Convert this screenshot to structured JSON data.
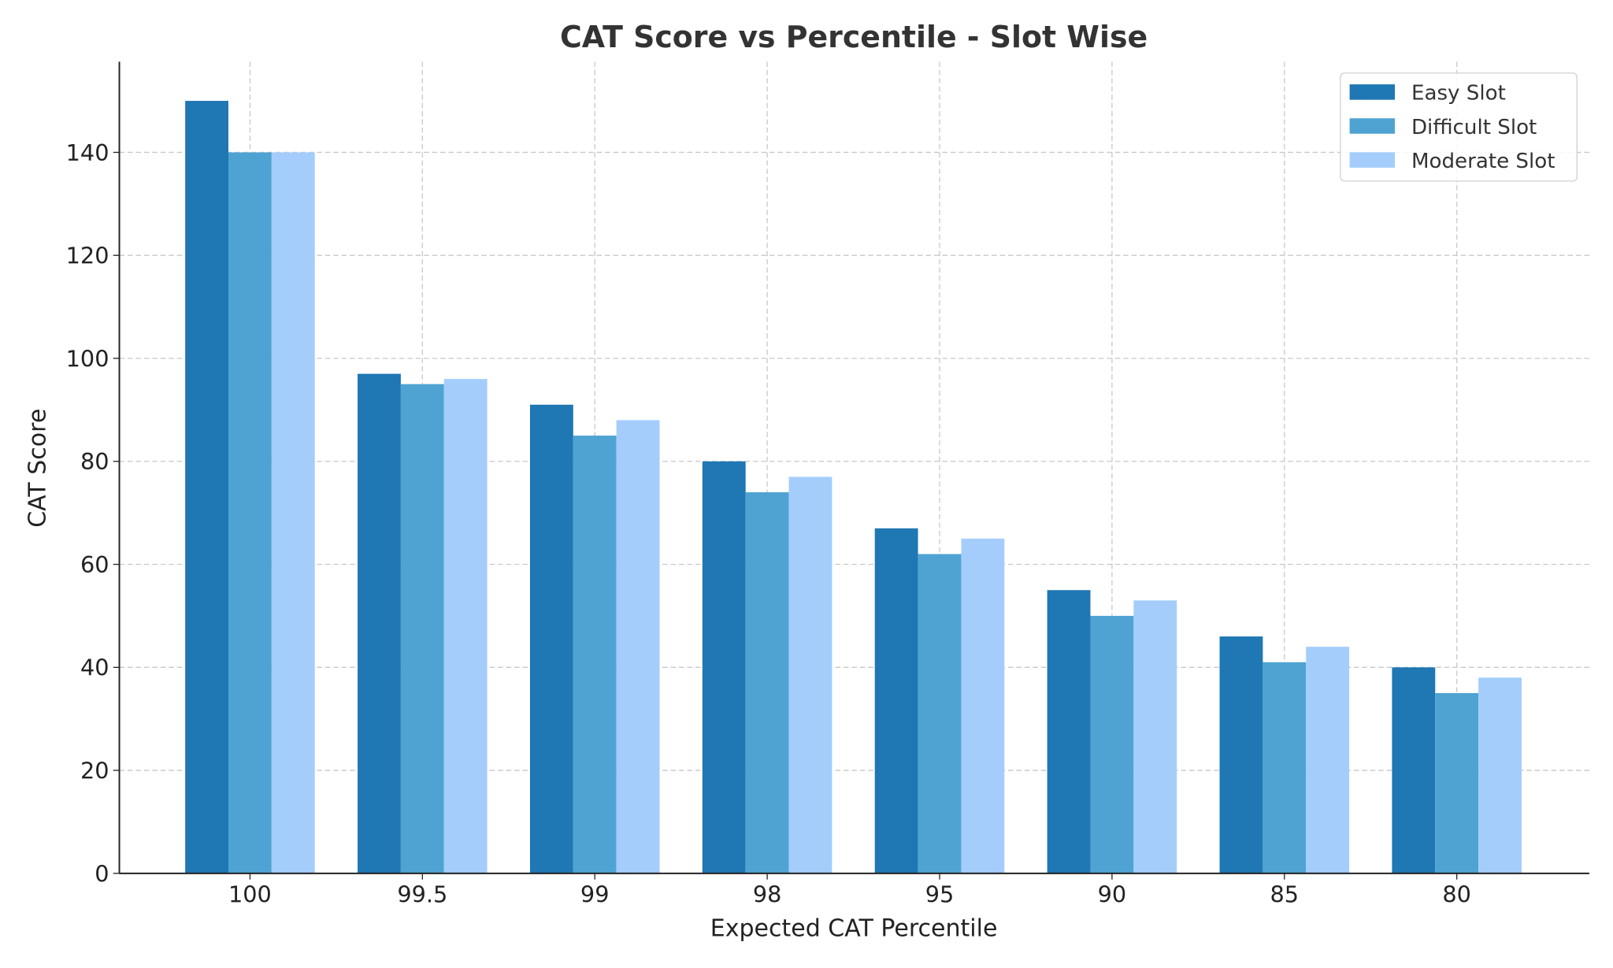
{
  "chart_data": {
    "type": "bar",
    "title": "CAT Score vs Percentile - Slot Wise",
    "xlabel": "Expected CAT Percentile",
    "ylabel": "CAT Score",
    "categories": [
      "100",
      "99.5",
      "99",
      "98",
      "95",
      "90",
      "85",
      "80"
    ],
    "series": [
      {
        "name": "Easy Slot",
        "color": "#1f77b4",
        "values": [
          150,
          97,
          91,
          80,
          67,
          55,
          46,
          40
        ]
      },
      {
        "name": "Difficult Slot",
        "color": "#4fa3d3",
        "values": [
          140,
          95,
          85,
          74,
          62,
          50,
          41,
          35
        ]
      },
      {
        "name": "Moderate Slot",
        "color": "#a4cdfc",
        "values": [
          140,
          96,
          88,
          77,
          65,
          53,
          44,
          38
        ]
      }
    ],
    "ylim": [
      0,
      157.6
    ],
    "yticks": [
      "0",
      "20",
      "40",
      "60",
      "80",
      "100",
      "120",
      "140"
    ],
    "grid": true,
    "legend_position": "top-right"
  }
}
